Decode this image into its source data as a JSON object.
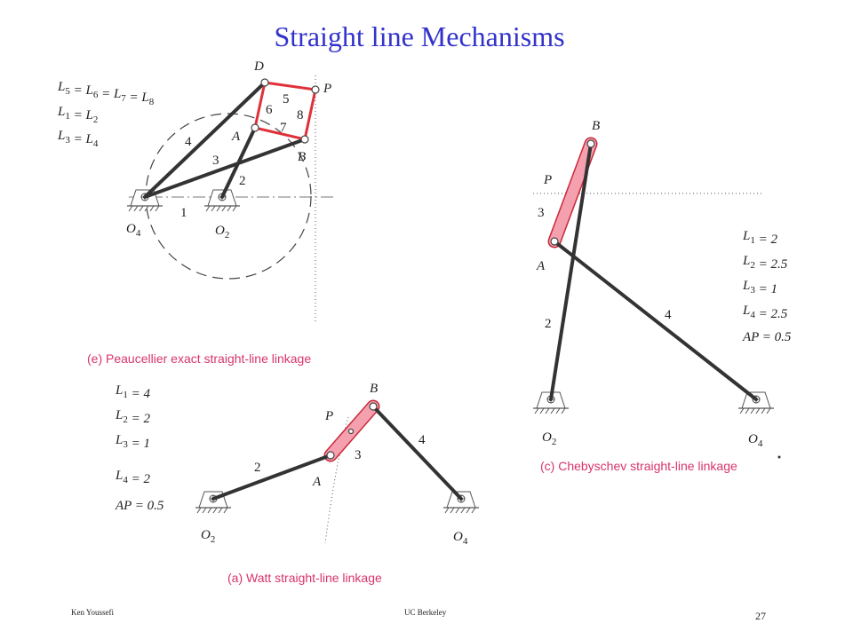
{
  "title": "Straight line Mechanisms",
  "peaucellier": {
    "equations": [
      "L5 = L6 = L7 = L8",
      "L1 = L2",
      "L3 = L4"
    ],
    "labels": {
      "D": "D",
      "P": "P",
      "A": "A",
      "B": "B",
      "O4": "O4",
      "O2": "O2"
    },
    "links": {
      "1": "1",
      "2": "2",
      "3": "3",
      "4": "4",
      "5": "5",
      "6": "6",
      "7": "7",
      "8": "8"
    },
    "caption": "(e) Peaucellier exact straight-line linkage"
  },
  "chebyschev": {
    "equations": [
      "L1 = 2",
      "L2 = 2.5",
      "L3 = 1",
      "L4 = 2.5",
      "AP = 0.5"
    ],
    "labels": {
      "B": "B",
      "P": "P",
      "A": "A",
      "O2": "O2",
      "O4": "O4"
    },
    "links": {
      "2": "2",
      "3": "3",
      "4": "4"
    },
    "caption": "(c) Chebyschev straight-line linkage"
  },
  "watt": {
    "equations": [
      "L1 = 4",
      "L2 = 2",
      "L3 = 1",
      "L4 = 2",
      "AP = 0.5"
    ],
    "labels": {
      "B": "B",
      "P": "P",
      "A": "A",
      "O2": "O2",
      "O4": "O4"
    },
    "links": {
      "2": "2",
      "3": "3",
      "4": "4"
    },
    "caption": "(a) Watt straight-line linkage"
  },
  "footer": {
    "author": "Ken Youssefi",
    "organization": "UC Berkeley",
    "page": "27"
  }
}
